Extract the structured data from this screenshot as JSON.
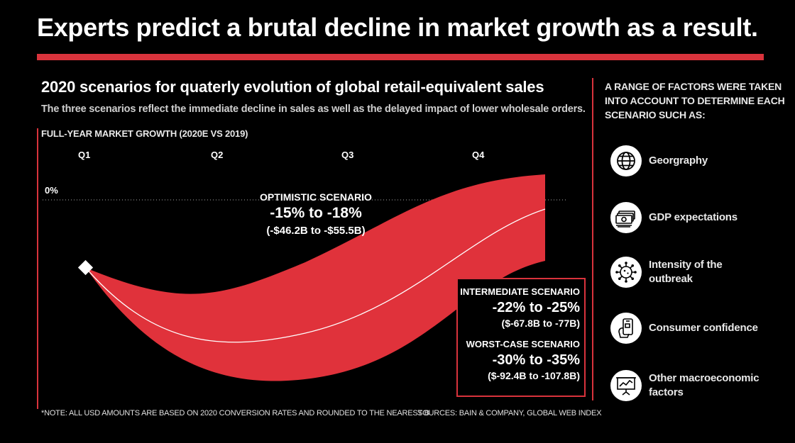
{
  "title": "Experts predict a brutal decline in market growth as a result.",
  "subtitle": "2020 scenarios for quaterly evolution of global retail-equivalent sales",
  "description": "The three scenarios reflect the immediate decline in sales as well as the delayed impact of lower wholesale orders.",
  "colors": {
    "accent": "#d9333c",
    "band": "#e0323b",
    "background": "#000000"
  },
  "chart_data": {
    "type": "area",
    "axis_title": "FULL-YEAR MARKET GROWTH (2020E VS 2019)",
    "categories": [
      "Q1",
      "Q2",
      "Q3",
      "Q4"
    ],
    "zero_label": "0%",
    "scenarios": [
      {
        "name": "OPTIMISTIC SCENARIO",
        "range": "-15% to -18%",
        "usd": "(-$46.2B to -$55.5B)"
      },
      {
        "name": "INTERMEDIATE SCENARIO",
        "range": "-22% to -25%",
        "usd": "($-67.8B to -77B)"
      },
      {
        "name": "WORST-CASE SCENARIO",
        "range": "-30% to -35%",
        "usd": "($-92.4B to -107.8B)"
      }
    ]
  },
  "note": "*NOTE: ALL USD AMOUNTS ARE BASED ON 2020 CONVERSION RATES AND ROUNDED TO THE NEAREST B",
  "sources": "SOURCES: BAIN & COMPANY, GLOBAL WEB INDEX",
  "factors": {
    "heading": "A RANGE OF FACTORS WERE TAKEN INTO ACCOUNT TO DETERMINE EACH SCENARIO SUCH AS:",
    "items": [
      {
        "label": "Georgraphy",
        "icon": "globe-icon"
      },
      {
        "label": "GDP expectations",
        "icon": "money-stack-icon"
      },
      {
        "label": "Intensity of the outbreak",
        "icon": "virus-icon"
      },
      {
        "label": "Consumer confidence",
        "icon": "phone-hand-icon"
      },
      {
        "label": "Other macroeconomic factors",
        "icon": "presentation-icon"
      }
    ]
  }
}
